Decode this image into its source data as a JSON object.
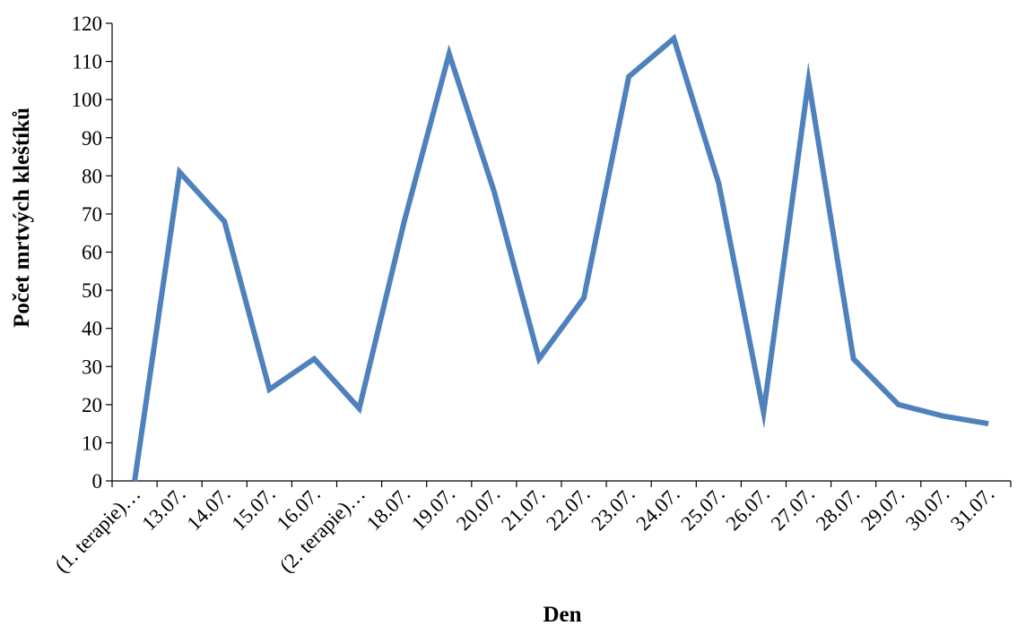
{
  "chart_data": {
    "type": "line",
    "title": "",
    "xlabel": "Den",
    "ylabel": "Počet mrtvých kleštíků",
    "ylim": [
      0,
      120
    ],
    "yticks": [
      0,
      10,
      20,
      30,
      40,
      50,
      60,
      70,
      80,
      90,
      100,
      110,
      120
    ],
    "grid": false,
    "legend": "none",
    "categories": [
      "(1. terapie)…",
      "13.07.",
      "14.07.",
      "15.07.",
      "16.07.",
      "(2. terapie)…",
      "18.07.",
      "19.07.",
      "20.07.",
      "21.07.",
      "22.07.",
      "23.07.",
      "24.07.",
      "25.07.",
      "26.07.",
      "27.07.",
      "28.07.",
      "29.07.",
      "30.07.",
      "31.07."
    ],
    "series": [
      {
        "values": [
          0,
          81,
          68,
          24,
          32,
          19,
          68,
          112,
          76,
          32,
          48,
          106,
          116,
          78,
          18,
          105,
          32,
          20,
          17,
          15
        ],
        "color": "#4f81bd"
      }
    ]
  }
}
